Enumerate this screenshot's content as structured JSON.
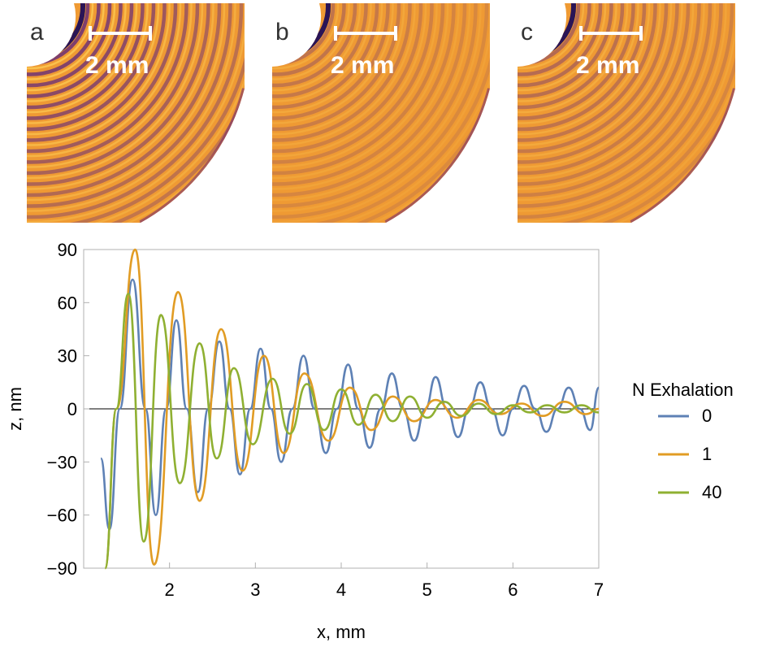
{
  "panels": [
    {
      "letter": "a",
      "scale_label": "2 mm",
      "ring_contrast": 0.85
    },
    {
      "letter": "b",
      "scale_label": "2 mm",
      "ring_contrast": 0.35
    },
    {
      "letter": "c",
      "scale_label": "2 mm",
      "ring_contrast": 0.45
    }
  ],
  "chart_data": {
    "type": "line",
    "xlabel": "x, mm",
    "ylabel": "z, nm",
    "xlim": [
      1.0,
      7.0
    ],
    "ylim": [
      -90,
      90
    ],
    "xticks": [
      2,
      3,
      4,
      5,
      6,
      7
    ],
    "yticks": [
      90,
      60,
      30,
      0,
      -30,
      -60,
      -90
    ],
    "ytick_labels": [
      "90",
      "60",
      "30",
      "0",
      "−30",
      "−60",
      "−90"
    ],
    "grid": false,
    "legend": {
      "title": "N Exhalation",
      "position": "right"
    },
    "series": [
      {
        "name": "0",
        "color": "#5e81b5",
        "x": [
          1.2,
          1.3,
          1.42,
          1.57,
          1.72,
          1.84,
          1.96,
          2.08,
          2.2,
          2.33,
          2.45,
          2.58,
          2.7,
          2.82,
          2.94,
          3.06,
          3.18,
          3.3,
          3.43,
          3.56,
          3.69,
          3.82,
          3.95,
          4.08,
          4.2,
          4.33,
          4.46,
          4.59,
          4.72,
          4.85,
          4.98,
          5.1,
          5.23,
          5.36,
          5.49,
          5.62,
          5.75,
          5.88,
          6.0,
          6.13,
          6.26,
          6.39,
          6.52,
          6.65,
          6.78,
          6.9,
          7.0
        ],
        "y": [
          -28,
          -68,
          0,
          73,
          0,
          -60,
          0,
          50,
          0,
          -47,
          0,
          38,
          0,
          -37,
          0,
          34,
          0,
          -30,
          0,
          30,
          0,
          -25,
          0,
          25,
          0,
          -22,
          0,
          20,
          0,
          -18,
          0,
          18,
          0,
          -16,
          0,
          15,
          0,
          -15,
          0,
          13,
          0,
          -13,
          0,
          12,
          0,
          -12,
          12
        ]
      },
      {
        "name": "1",
        "color": "#e19c24",
        "x": [
          1.25,
          1.38,
          1.6,
          1.82,
          2.1,
          2.35,
          2.6,
          2.85,
          3.1,
          3.33,
          3.57,
          3.85,
          4.1,
          4.35,
          4.6,
          4.85,
          5.1,
          5.35,
          5.6,
          5.85,
          6.1,
          6.35,
          6.6,
          6.85,
          7.0
        ],
        "y": [
          -90,
          0,
          90,
          -88,
          66,
          -52,
          45,
          -35,
          30,
          -25,
          20,
          -18,
          12,
          -12,
          7,
          -7,
          5,
          -5,
          5,
          -3,
          3,
          -4,
          4,
          -3,
          0
        ]
      },
      {
        "name": "40",
        "color": "#8fb032",
        "x": [
          1.25,
          1.38,
          1.52,
          1.7,
          1.9,
          2.12,
          2.35,
          2.55,
          2.75,
          2.97,
          3.2,
          3.4,
          3.6,
          3.8,
          4.0,
          4.2,
          4.4,
          4.6,
          4.8,
          5.0,
          5.2,
          5.4,
          5.6,
          5.8,
          6.0,
          6.2,
          6.4,
          6.6,
          6.8,
          7.0
        ],
        "y": [
          -90,
          0,
          65,
          -75,
          53,
          -42,
          37,
          -28,
          23,
          -20,
          17,
          -14,
          14,
          -12,
          11,
          -9,
          8,
          -7,
          7,
          -5,
          4,
          -4,
          3,
          -3,
          2,
          -2,
          2,
          -2,
          2,
          -2
        ]
      }
    ]
  }
}
